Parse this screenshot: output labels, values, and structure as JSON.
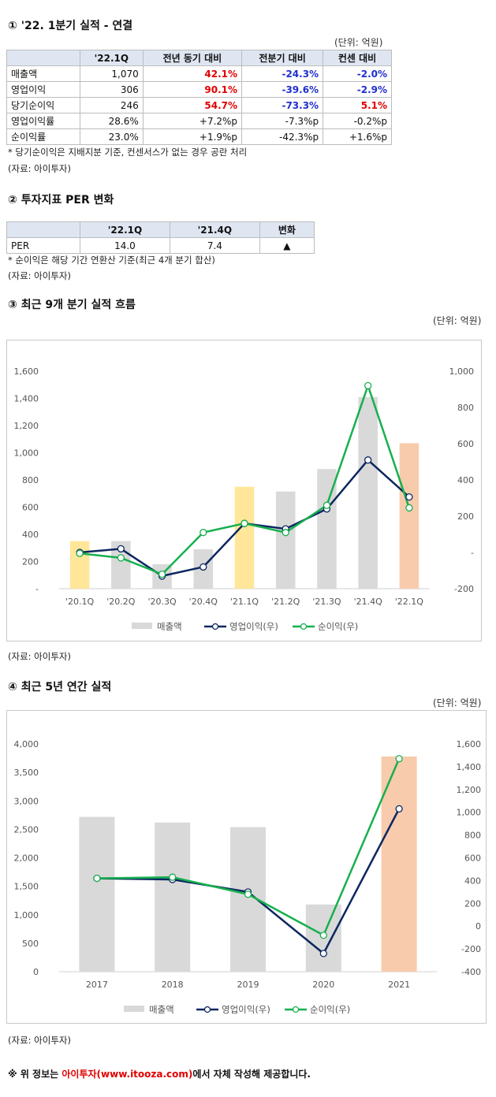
{
  "s1": {
    "title": "① '22. 1분기 실적 - 연결",
    "unit": "(단위: 억원)",
    "headers": [
      "",
      "'22.1Q",
      "전년 동기 대비",
      "전분기 대비",
      "컨센 대비"
    ],
    "rows": [
      {
        "label": "매출액",
        "val": "1,070",
        "yoy": "42.1%",
        "qoq": "-24.3%",
        "cons": "-2.0%",
        "yoy_c": "red",
        "qoq_c": "blue",
        "cons_c": "blue"
      },
      {
        "label": "영업이익",
        "val": "306",
        "yoy": "90.1%",
        "qoq": "-39.6%",
        "cons": "-2.9%",
        "yoy_c": "red",
        "qoq_c": "blue",
        "cons_c": "blue"
      },
      {
        "label": "당기순이익",
        "val": "246",
        "yoy": "54.7%",
        "qoq": "-73.3%",
        "cons": "5.1%",
        "yoy_c": "red",
        "qoq_c": "blue",
        "cons_c": "red"
      },
      {
        "label": "영업이익률",
        "val": "28.6%",
        "yoy": "+7.2%p",
        "qoq": "-7.3%p",
        "cons": "-0.2%p",
        "yoy_c": "",
        "qoq_c": "",
        "cons_c": ""
      },
      {
        "label": "순이익률",
        "val": "23.0%",
        "yoy": "+1.9%p",
        "qoq": "-42.3%p",
        "cons": "+1.6%p",
        "yoy_c": "",
        "qoq_c": "",
        "cons_c": ""
      }
    ],
    "note": "* 당기순이익은 지배지분 기준, 컨센서스가 없는 경우 공란 처리",
    "source": "(자료: 아이투자)"
  },
  "s2": {
    "title": "② 투자지표 PER 변화",
    "headers": [
      "",
      "'22.1Q",
      "'21.4Q",
      "변화"
    ],
    "row": {
      "label": "PER",
      "v1": "14.0",
      "v2": "7.4",
      "change": "▲"
    },
    "note": "* 순이익은 해당 기간 연환산 기준(최근 4개 분기 합산)",
    "source": "(자료: 아이투자)"
  },
  "s3": {
    "title": "③ 최근 9개 분기 실적 흐름",
    "unit": "(단위: 억원)",
    "source": "(자료: 아이투자)"
  },
  "s4": {
    "title": "④ 최근 5년 연간 실적",
    "unit": "(단위: 억원)",
    "source": "(자료: 아이투자)"
  },
  "footer": {
    "prefix": "※ 위 정보는 ",
    "brand": "아이투자(www.itooza.com)",
    "suffix": "에서 자체 작성해 제공합니다."
  },
  "chart_data": [
    {
      "type": "bar",
      "categories": [
        "'20.1Q",
        "'20.2Q",
        "'20.3Q",
        "'20.4Q",
        "'21.1Q",
        "'21.2Q",
        "'21.3Q",
        "'21.4Q",
        "'22.1Q"
      ],
      "ylim": [
        0,
        1600
      ],
      "yticks": [
        0,
        200,
        400,
        600,
        800,
        1000,
        1200,
        1400,
        1600
      ],
      "ytick_labels": [
        "-",
        "200",
        "400",
        "600",
        "800",
        "1,000",
        "1,200",
        "1,400",
        "1,600"
      ],
      "y2lim": [
        -200,
        1000
      ],
      "y2ticks": [
        -200,
        0,
        200,
        400,
        600,
        800,
        1000
      ],
      "y2tick_labels": [
        "-200",
        "-",
        "200",
        "400",
        "600",
        "800",
        "1,000"
      ],
      "bar_colors": [
        "#ffe699",
        "#d9d9d9",
        "#d9d9d9",
        "#d9d9d9",
        "#ffe699",
        "#d9d9d9",
        "#d9d9d9",
        "#d9d9d9",
        "#f8cbad"
      ],
      "series": [
        {
          "name": "매출액",
          "kind": "bar",
          "axis": "left",
          "color": "#d9d9d9",
          "values": [
            350,
            350,
            180,
            290,
            750,
            715,
            880,
            1410,
            1070
          ]
        },
        {
          "name": "영업이익(우)",
          "kind": "line",
          "axis": "right",
          "color": "#0d2760",
          "values": [
            0,
            20,
            -130,
            -80,
            160,
            130,
            240,
            510,
            306
          ]
        },
        {
          "name": "순이익(우)",
          "kind": "line",
          "axis": "right",
          "color": "#16b04e",
          "values": [
            -5,
            -30,
            -120,
            110,
            160,
            110,
            260,
            920,
            246
          ]
        }
      ]
    },
    {
      "type": "bar",
      "categories": [
        "2017",
        "2018",
        "2019",
        "2020",
        "2021"
      ],
      "ylim": [
        0,
        4000
      ],
      "yticks": [
        0,
        500,
        1000,
        1500,
        2000,
        2500,
        3000,
        3500,
        4000
      ],
      "ytick_labels": [
        "0",
        "500",
        "1,000",
        "1,500",
        "2,000",
        "2,500",
        "3,000",
        "3,500",
        "4,000"
      ],
      "y2lim": [
        -400,
        1600
      ],
      "y2ticks": [
        -400,
        -200,
        0,
        200,
        400,
        600,
        800,
        1000,
        1200,
        1400,
        1600
      ],
      "y2tick_labels": [
        "-400",
        "-200",
        "0",
        "200",
        "400",
        "600",
        "800",
        "1,000",
        "1,200",
        "1,400",
        "1,600"
      ],
      "bar_colors": [
        "#d9d9d9",
        "#d9d9d9",
        "#d9d9d9",
        "#d9d9d9",
        "#f8cbad"
      ],
      "series": [
        {
          "name": "매출액",
          "kind": "bar",
          "axis": "left",
          "color": "#d9d9d9",
          "values": [
            2720,
            2620,
            2540,
            1180,
            3780
          ]
        },
        {
          "name": "영업이익(우)",
          "kind": "line",
          "axis": "right",
          "color": "#0d2760",
          "values": [
            420,
            410,
            300,
            -240,
            1030
          ]
        },
        {
          "name": "순이익(우)",
          "kind": "line",
          "axis": "right",
          "color": "#16b04e",
          "values": [
            420,
            430,
            280,
            -80,
            1470
          ]
        }
      ]
    }
  ]
}
